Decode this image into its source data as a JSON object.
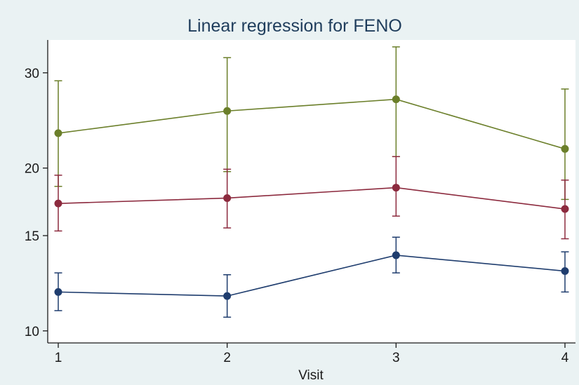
{
  "chart_data": {
    "type": "line",
    "title": "Linear regression for FENO",
    "xlabel": "Visit",
    "ylabel": "",
    "x": [
      1,
      2,
      3,
      4
    ],
    "x_tick_labels": [
      "1",
      "2",
      "3",
      "4"
    ],
    "y_scale": "log",
    "ylim": [
      9.5,
      34.5
    ],
    "y_ticks": [
      10,
      15,
      20,
      30
    ],
    "y_tick_labels": [
      "10",
      "15",
      "20",
      "30"
    ],
    "grid": false,
    "error_bars": true,
    "series": [
      {
        "color": "#6b7f2a",
        "values": [
          23.2,
          25.5,
          26.8,
          21.7
        ],
        "lower": [
          18.5,
          19.7,
          21.0,
          17.5
        ],
        "upper": [
          29.0,
          32.0,
          33.5,
          28.0
        ]
      },
      {
        "color": "#8c2a3e",
        "values": [
          17.2,
          17.6,
          18.4,
          16.8
        ],
        "lower": [
          15.3,
          15.5,
          16.3,
          14.8
        ],
        "upper": [
          19.4,
          19.9,
          21.0,
          19.0
        ]
      },
      {
        "color": "#1f3d6e",
        "values": [
          11.8,
          11.6,
          13.8,
          12.9
        ],
        "lower": [
          10.9,
          10.6,
          12.8,
          11.8
        ],
        "upper": [
          12.8,
          12.7,
          14.9,
          14.0
        ]
      }
    ]
  }
}
